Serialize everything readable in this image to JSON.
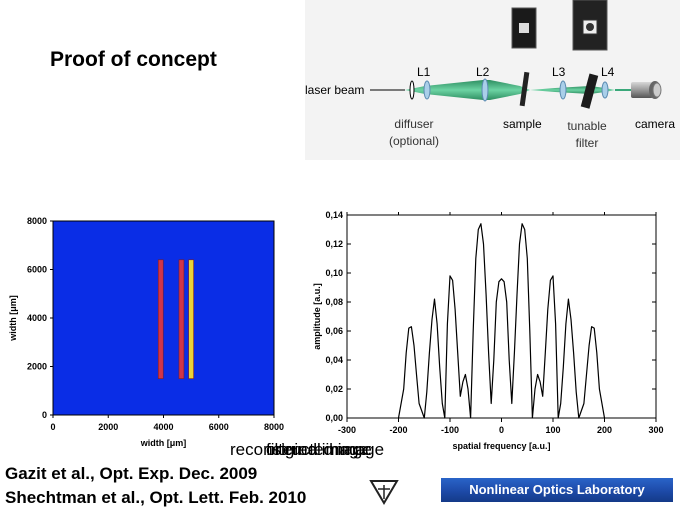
{
  "slide": {
    "title": "Proof of concept",
    "citations": [
      "Gazit et al., Opt. Exp. Dec. 2009",
      "Shechtman et al., Opt. Lett. Feb. 2010"
    ],
    "overlapping_captions": [
      "original image",
      "filtered image",
      "reconstructed image"
    ],
    "lab_banner": "Nonlinear Optics Laboratory"
  },
  "setup_diagram": {
    "laser_label": "laser beam",
    "lens_labels": [
      "L1",
      "L2",
      "L3",
      "L4"
    ],
    "component_labels": {
      "sample": "sample",
      "camera": "camera"
    },
    "callouts": {
      "diffuser": "diffuser\n(optional)",
      "tunable_filter": "tunable\nfilter"
    },
    "beam_color": "#3aa87a"
  },
  "chart_data": [
    {
      "type": "heatmap",
      "xlabel": "width [μm]",
      "ylabel": "width [μm]",
      "xlim": [
        0,
        8000
      ],
      "ylim": [
        0,
        8000
      ],
      "x_ticks": [
        0,
        2000,
        4000,
        6000,
        8000
      ],
      "y_ticks": [
        0,
        2000,
        4000,
        6000,
        8000
      ],
      "background_color": "#0a2de6",
      "stripes": [
        {
          "x_center": 3900,
          "y_range": [
            1500,
            6400
          ],
          "color": "#d0354a"
        },
        {
          "x_center": 4650,
          "y_range": [
            1500,
            6400
          ],
          "color": "#d0354a"
        },
        {
          "x_center": 5000,
          "y_range": [
            1500,
            6400
          ],
          "color": "#e8d43a"
        }
      ]
    },
    {
      "type": "line",
      "xlabel": "spatial frequency [a.u.]",
      "ylabel": "amplitude [a.u.]",
      "xlim": [
        -300,
        300
      ],
      "ylim": [
        0,
        0.14
      ],
      "x_ticks": [
        -300,
        -200,
        -100,
        0,
        100,
        200,
        300
      ],
      "y_ticks": [
        "0,00",
        "0,02",
        "0,04",
        "0,06",
        "0,08",
        "0,10",
        "0,12",
        "0,14"
      ],
      "series": [
        {
          "x": [
            -200,
            -190,
            -185,
            -180,
            -175,
            -170,
            -165,
            -160,
            -150,
            -145,
            -140,
            -135,
            -130,
            -125,
            -120,
            -115,
            -110,
            -105,
            -100,
            -95,
            -90,
            -85,
            -80,
            -75,
            -70,
            -65,
            -60,
            -55,
            -50,
            -45,
            -40,
            -35,
            -30,
            -25,
            -20,
            -15,
            -10,
            -5,
            0,
            5,
            10,
            15,
            20,
            25,
            30,
            35,
            40,
            45,
            50,
            55,
            60,
            65,
            70,
            75,
            80,
            85,
            90,
            95,
            100,
            105,
            110,
            115,
            120,
            125,
            130,
            135,
            140,
            145,
            150,
            160,
            165,
            170,
            175,
            180,
            185,
            190,
            200
          ],
          "y": [
            0.0,
            0.02,
            0.045,
            0.062,
            0.063,
            0.05,
            0.03,
            0.01,
            0.0,
            0.018,
            0.045,
            0.068,
            0.082,
            0.065,
            0.035,
            0.01,
            0.0,
            0.065,
            0.098,
            0.095,
            0.075,
            0.045,
            0.015,
            0.025,
            0.03,
            0.02,
            0.0,
            0.06,
            0.11,
            0.13,
            0.134,
            0.12,
            0.085,
            0.045,
            0.01,
            0.04,
            0.08,
            0.094,
            0.096,
            0.094,
            0.08,
            0.04,
            0.01,
            0.045,
            0.085,
            0.12,
            0.134,
            0.13,
            0.11,
            0.06,
            0.0,
            0.02,
            0.03,
            0.025,
            0.015,
            0.045,
            0.075,
            0.095,
            0.098,
            0.065,
            0.0,
            0.01,
            0.035,
            0.065,
            0.082,
            0.068,
            0.045,
            0.018,
            0.0,
            0.01,
            0.03,
            0.05,
            0.063,
            0.062,
            0.045,
            0.02,
            0.0
          ]
        }
      ]
    }
  ]
}
